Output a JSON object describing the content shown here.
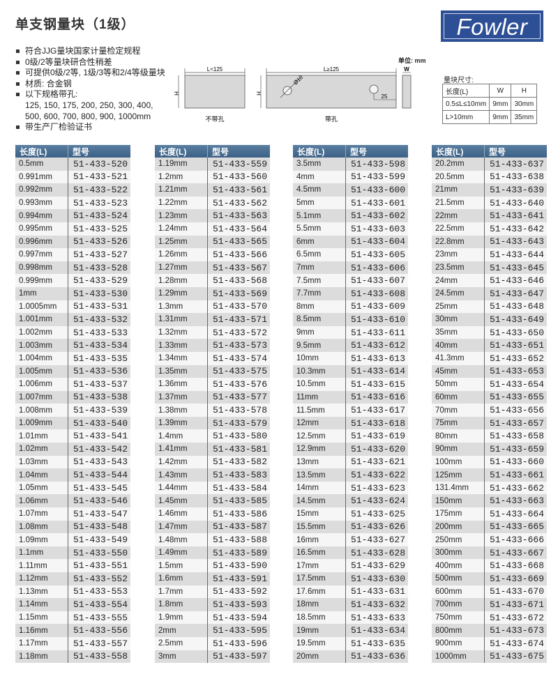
{
  "title": "单支钢量块（1级）",
  "logo": {
    "text": "Fowler",
    "color": "#2d4f95"
  },
  "features": [
    {
      "text": "符合JJG量块国家计量检定规程",
      "bullet": true
    },
    {
      "text": "0级/2等量块研合性稍差",
      "bullet": true
    },
    {
      "text": "可提供0级/2等, 1级/3等和2/4等级量块",
      "bullet": true
    },
    {
      "text": "材质: 合金钢",
      "bullet": true
    },
    {
      "text": "以下规格带孔:",
      "bullet": true
    },
    {
      "text": "125, 150, 175, 200, 250, 300, 400,",
      "bullet": false
    },
    {
      "text": "500, 600, 700, 800, 900, 1000mm",
      "bullet": false
    },
    {
      "text": "带生产厂检验证书",
      "bullet": true
    }
  ],
  "unit_label": "单位: mm",
  "diagram": {
    "no_hole": {
      "length_label": "L<125",
      "height_label": "H",
      "caption": "不带孔"
    },
    "with_hole": {
      "length_label": "L≥125",
      "height_label": "H",
      "hole_label": "Ø10",
      "offset_label": "25",
      "caption": "带孔"
    },
    "side": {
      "width_label": "W"
    }
  },
  "dimensions": {
    "title": "量块尺寸:",
    "headers": [
      "长度(L)",
      "W",
      "H"
    ],
    "rows": [
      [
        "0.5≤L≤10mm",
        "9mm",
        "30mm"
      ],
      [
        "L>10mm",
        "9mm",
        "35mm"
      ]
    ]
  },
  "header_color": "#3d6186",
  "tables": [
    {
      "headers": [
        "长度(L)",
        "型号"
      ],
      "rows": [
        [
          "0.5mm",
          "51-433-520"
        ],
        [
          "0.991mm",
          "51-433-521"
        ],
        [
          "0.992mm",
          "51-433-522"
        ],
        [
          "0.993mm",
          "51-433-523"
        ],
        [
          "0.994mm",
          "51-433-524"
        ],
        [
          "0.995mm",
          "51-433-525"
        ],
        [
          "0.996mm",
          "51-433-526"
        ],
        [
          "0.997mm",
          "51-433-527"
        ],
        [
          "0.998mm",
          "51-433-528"
        ],
        [
          "0.999mm",
          "51-433-529"
        ],
        [
          "1mm",
          "51-433-530"
        ],
        [
          "1.0005mm",
          "51-433-531"
        ],
        [
          "1.001mm",
          "51-433-532"
        ],
        [
          "1.002mm",
          "51-433-533"
        ],
        [
          "1.003mm",
          "51-433-534"
        ],
        [
          "1.004mm",
          "51-433-535"
        ],
        [
          "1.005mm",
          "51-433-536"
        ],
        [
          "1.006mm",
          "51-433-537"
        ],
        [
          "1.007mm",
          "51-433-538"
        ],
        [
          "1.008mm",
          "51-433-539"
        ],
        [
          "1.009mm",
          "51-433-540"
        ],
        [
          "1.01mm",
          "51-433-541"
        ],
        [
          "1.02mm",
          "51-433-542"
        ],
        [
          "1.03mm",
          "51-433-543"
        ],
        [
          "1.04mm",
          "51-433-544"
        ],
        [
          "1.05mm",
          "51-433-545"
        ],
        [
          "1.06mm",
          "51-433-546"
        ],
        [
          "1.07mm",
          "51-433-547"
        ],
        [
          "1.08mm",
          "51-433-548"
        ],
        [
          "1.09mm",
          "51-433-549"
        ],
        [
          "1.1mm",
          "51-433-550"
        ],
        [
          "1.11mm",
          "51-433-551"
        ],
        [
          "1.12mm",
          "51-433-552"
        ],
        [
          "1.13mm",
          "51-433-553"
        ],
        [
          "1.14mm",
          "51-433-554"
        ],
        [
          "1.15mm",
          "51-433-555"
        ],
        [
          "1.16mm",
          "51-433-556"
        ],
        [
          "1.17mm",
          "51-433-557"
        ],
        [
          "1.18mm",
          "51-433-558"
        ]
      ]
    },
    {
      "headers": [
        "长度(L)",
        "型号"
      ],
      "rows": [
        [
          "1.19mm",
          "51-433-559"
        ],
        [
          "1.2mm",
          "51-433-560"
        ],
        [
          "1.21mm",
          "51-433-561"
        ],
        [
          "1.22mm",
          "51-433-562"
        ],
        [
          "1.23mm",
          "51-433-563"
        ],
        [
          "1.24mm",
          "51-433-564"
        ],
        [
          "1.25mm",
          "51-433-565"
        ],
        [
          "1.26mm",
          "51-433-566"
        ],
        [
          "1.27mm",
          "51-433-567"
        ],
        [
          "1.28mm",
          "51-433-568"
        ],
        [
          "1.29mm",
          "51-433-569"
        ],
        [
          "1.3mm",
          "51-433-570"
        ],
        [
          "1.31mm",
          "51-433-571"
        ],
        [
          "1.32mm",
          "51-433-572"
        ],
        [
          "1.33mm",
          "51-433-573"
        ],
        [
          "1.34mm",
          "51-433-574"
        ],
        [
          "1.35mm",
          "51-433-575"
        ],
        [
          "1.36mm",
          "51-433-576"
        ],
        [
          "1.37mm",
          "51-433-577"
        ],
        [
          "1.38mm",
          "51-433-578"
        ],
        [
          "1.39mm",
          "51-433-579"
        ],
        [
          "1.4mm",
          "51-433-580"
        ],
        [
          "1.41mm",
          "51-433-581"
        ],
        [
          "1.42mm",
          "51-433-582"
        ],
        [
          "1.43mm",
          "51-433-583"
        ],
        [
          "1.44mm",
          "51-433-584"
        ],
        [
          "1.45mm",
          "51-433-585"
        ],
        [
          "1.46mm",
          "51-433-586"
        ],
        [
          "1.47mm",
          "51-433-587"
        ],
        [
          "1.48mm",
          "51-433-588"
        ],
        [
          "1.49mm",
          "51-433-589"
        ],
        [
          "1.5mm",
          "51-433-590"
        ],
        [
          "1.6mm",
          "51-433-591"
        ],
        [
          "1.7mm",
          "51-433-592"
        ],
        [
          "1.8mm",
          "51-433-593"
        ],
        [
          "1.9mm",
          "51-433-594"
        ],
        [
          "2mm",
          "51-433-595"
        ],
        [
          "2.5mm",
          "51-433-596"
        ],
        [
          "3mm",
          "51-433-597"
        ]
      ]
    },
    {
      "headers": [
        "长度(L)",
        "型号"
      ],
      "rows": [
        [
          "3.5mm",
          "51-433-598"
        ],
        [
          "4mm",
          "51-433-599"
        ],
        [
          "4.5mm",
          "51-433-600"
        ],
        [
          "5mm",
          "51-433-601"
        ],
        [
          "5.1mm",
          "51-433-602"
        ],
        [
          "5.5mm",
          "51-433-603"
        ],
        [
          "6mm",
          "51-433-604"
        ],
        [
          "6.5mm",
          "51-433-605"
        ],
        [
          "7mm",
          "51-433-606"
        ],
        [
          "7.5mm",
          "51-433-607"
        ],
        [
          "7.7mm",
          "51-433-608"
        ],
        [
          "8mm",
          "51-433-609"
        ],
        [
          "8.5mm",
          "51-433-610"
        ],
        [
          "9mm",
          "51-433-611"
        ],
        [
          "9.5mm",
          "51-433-612"
        ],
        [
          "10mm",
          "51-433-613"
        ],
        [
          "10.3mm",
          "51-433-614"
        ],
        [
          "10.5mm",
          "51-433-615"
        ],
        [
          "11mm",
          "51-433-616"
        ],
        [
          "11.5mm",
          "51-433-617"
        ],
        [
          "12mm",
          "51-433-618"
        ],
        [
          "12.5mm",
          "51-433-619"
        ],
        [
          "12.9mm",
          "51-433-620"
        ],
        [
          "13mm",
          "51-433-621"
        ],
        [
          "13.5mm",
          "51-433-622"
        ],
        [
          "14mm",
          "51-433-623"
        ],
        [
          "14.5mm",
          "51-433-624"
        ],
        [
          "15mm",
          "51-433-625"
        ],
        [
          "15.5mm",
          "51-433-626"
        ],
        [
          "16mm",
          "51-433-627"
        ],
        [
          "16.5mm",
          "51-433-628"
        ],
        [
          "17mm",
          "51-433-629"
        ],
        [
          "17.5mm",
          "51-433-630"
        ],
        [
          "17.6mm",
          "51-433-631"
        ],
        [
          "18mm",
          "51-433-632"
        ],
        [
          "18.5mm",
          "51-433-633"
        ],
        [
          "19mm",
          "51-433-634"
        ],
        [
          "19.5mm",
          "51-433-635"
        ],
        [
          "20mm",
          "51-433-636"
        ]
      ]
    },
    {
      "headers": [
        "长度(L)",
        "型号"
      ],
      "rows": [
        [
          "20.2mm",
          "51-433-637"
        ],
        [
          "20.5mm",
          "51-433-638"
        ],
        [
          "21mm",
          "51-433-639"
        ],
        [
          "21.5mm",
          "51-433-640"
        ],
        [
          "22mm",
          "51-433-641"
        ],
        [
          "22.5mm",
          "51-433-642"
        ],
        [
          "22.8mm",
          "51-433-643"
        ],
        [
          "23mm",
          "51-433-644"
        ],
        [
          "23.5mm",
          "51-433-645"
        ],
        [
          "24mm",
          "51-433-646"
        ],
        [
          "24.5mm",
          "51-433-647"
        ],
        [
          "25mm",
          "51-433-648"
        ],
        [
          "30mm",
          "51-433-649"
        ],
        [
          "35mm",
          "51-433-650"
        ],
        [
          "40mm",
          "51-433-651"
        ],
        [
          "41.3mm",
          "51-433-652"
        ],
        [
          "45mm",
          "51-433-653"
        ],
        [
          "50mm",
          "51-433-654"
        ],
        [
          "60mm",
          "51-433-655"
        ],
        [
          "70mm",
          "51-433-656"
        ],
        [
          "75mm",
          "51-433-657"
        ],
        [
          "80mm",
          "51-433-658"
        ],
        [
          "90mm",
          "51-433-659"
        ],
        [
          "100mm",
          "51-433-660"
        ],
        [
          "125mm",
          "51-433-661"
        ],
        [
          "131.4mm",
          "51-433-662"
        ],
        [
          "150mm",
          "51-433-663"
        ],
        [
          "175mm",
          "51-433-664"
        ],
        [
          "200mm",
          "51-433-665"
        ],
        [
          "250mm",
          "51-433-666"
        ],
        [
          "300mm",
          "51-433-667"
        ],
        [
          "400mm",
          "51-433-668"
        ],
        [
          "500mm",
          "51-433-669"
        ],
        [
          "600mm",
          "51-433-670"
        ],
        [
          "700mm",
          "51-433-671"
        ],
        [
          "750mm",
          "51-433-672"
        ],
        [
          "800mm",
          "51-433-673"
        ],
        [
          "900mm",
          "51-433-674"
        ],
        [
          "1000mm",
          "51-433-675"
        ]
      ]
    }
  ]
}
